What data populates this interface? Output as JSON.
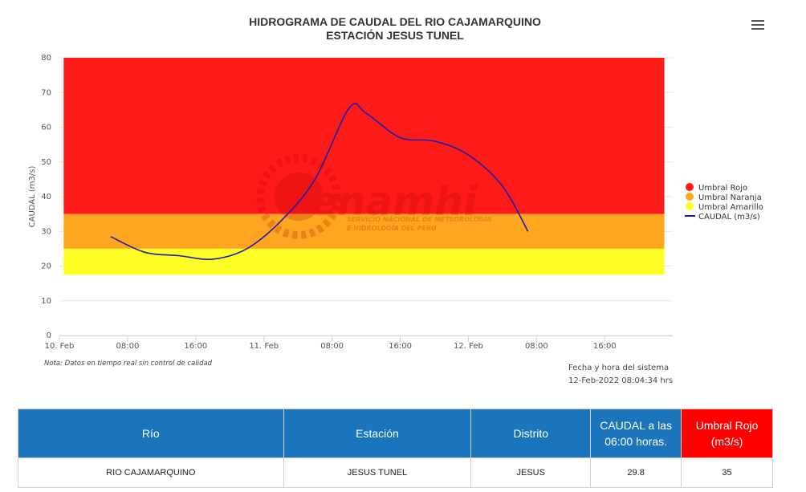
{
  "header": {
    "menu_icon": "hamburger-menu-icon"
  },
  "chart_data": {
    "type": "line",
    "title": "HIDROGRAMA DE CAUDAL DEL RIO CAJAMARQUINO",
    "subtitle": "ESTACIÓN JESUS TUNEL",
    "xlabel": "",
    "ylabel": "CAUDAL (m3/s)",
    "ylim": [
      0,
      80
    ],
    "yticks": [
      0,
      10,
      20,
      30,
      40,
      50,
      60,
      70,
      80
    ],
    "x_range": [
      "2022-02-10T00:00",
      "2022-02-12T23:59"
    ],
    "xtick_labels": [
      {
        "t": "2022-02-10T00:00",
        "label": "10. Feb"
      },
      {
        "t": "2022-02-10T08:00",
        "label": "08:00"
      },
      {
        "t": "2022-02-10T16:00",
        "label": "16:00"
      },
      {
        "t": "2022-02-11T00:00",
        "label": "11. Feb"
      },
      {
        "t": "2022-02-11T08:00",
        "label": "08:00"
      },
      {
        "t": "2022-02-11T16:00",
        "label": "16:00"
      },
      {
        "t": "2022-02-12T00:00",
        "label": "12. Feb"
      },
      {
        "t": "2022-02-12T08:00",
        "label": "08:00"
      },
      {
        "t": "2022-02-12T16:00",
        "label": "16:00"
      }
    ],
    "grid": true,
    "legend_position": "right",
    "bands": [
      {
        "name": "Umbral Rojo",
        "from": 35,
        "to": 80,
        "color": "#ff1a1a"
      },
      {
        "name": "Umbral Naranja",
        "from": 25,
        "to": 35,
        "color": "#ffa51f"
      },
      {
        "name": "Umbral Amarillo",
        "from": 17.5,
        "to": 25,
        "color": "#ffff26"
      }
    ],
    "bands_x_range": [
      "2022-02-10T00:30",
      "2022-02-12T23:00"
    ],
    "series": [
      {
        "name": "CAUDAL (m3/s)",
        "color": "#1c1ca8",
        "points": [
          {
            "t": "2022-02-10T06:00",
            "y": 28.5
          },
          {
            "t": "2022-02-10T10:00",
            "y": 24.0
          },
          {
            "t": "2022-02-10T14:00",
            "y": 23.0
          },
          {
            "t": "2022-02-10T18:00",
            "y": 22.0
          },
          {
            "t": "2022-02-10T22:00",
            "y": 25.0
          },
          {
            "t": "2022-02-11T02:00",
            "y": 33.0
          },
          {
            "t": "2022-02-11T06:00",
            "y": 45.0
          },
          {
            "t": "2022-02-11T10:00",
            "y": 65.5
          },
          {
            "t": "2022-02-11T12:00",
            "y": 64.0
          },
          {
            "t": "2022-02-11T16:00",
            "y": 57.0
          },
          {
            "t": "2022-02-11T20:00",
            "y": 56.0
          },
          {
            "t": "2022-02-12T00:00",
            "y": 52.0
          },
          {
            "t": "2022-02-12T04:00",
            "y": 43.0
          },
          {
            "t": "2022-02-12T07:00",
            "y": 30.0
          }
        ]
      }
    ],
    "watermark": {
      "brand": "Senamhi",
      "line1": "SERVICIO NACIONAL DE METEOROLOGÍA",
      "line2": "E HIDROLOGÍA DEL PERÚ"
    }
  },
  "note": "Nota: Datos en tiempo real sin control de calidad",
  "system_time": {
    "label": "Fecha y hora del sistema",
    "value": "12-Feb-2022 08:04:34 hrs"
  },
  "table": {
    "headers": [
      "Río",
      "Estación",
      "Distrito",
      "CAUDAL a las 06:00 horas.",
      "Umbral Rojo (m3/s)"
    ],
    "row": [
      "RIO CAJAMARQUINO",
      "JESUS TUNEL",
      "JESUS",
      "29.8",
      "35"
    ]
  }
}
